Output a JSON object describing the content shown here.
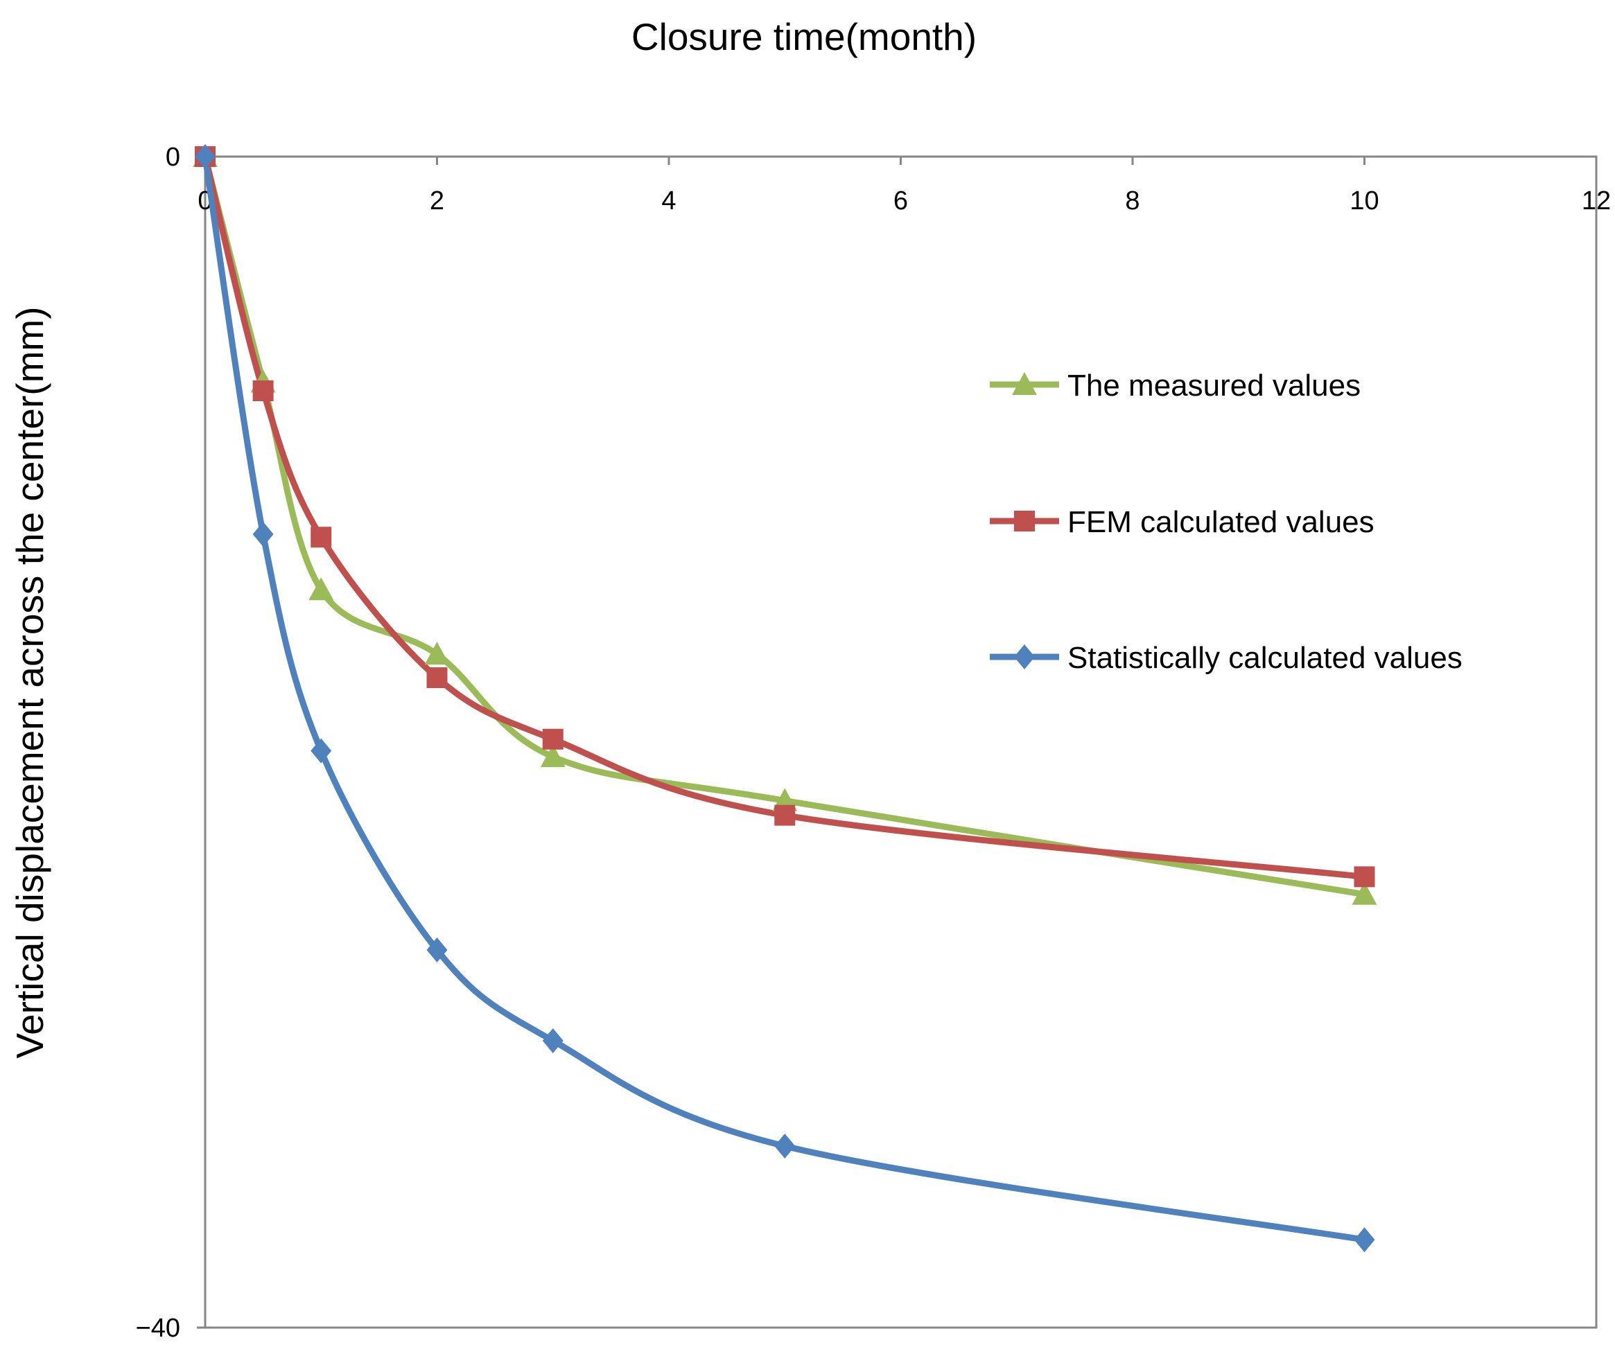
{
  "chart_data": {
    "type": "line",
    "title": "",
    "xlabel": "Closure time(month)",
    "ylabel": "Vertical displacement across the center(mm)",
    "xlim": [
      0,
      12
    ],
    "ylim": [
      -40,
      0
    ],
    "x_ticks": [
      "0",
      "2",
      "4",
      "6",
      "8",
      "10",
      "12"
    ],
    "y_ticks": [
      "0",
      "−40"
    ],
    "grid": false,
    "legend_position": "right",
    "series": [
      {
        "name": "The measured values",
        "color": "#9bbb59",
        "marker": "triangle",
        "x": [
          0,
          0.5,
          1,
          2,
          3,
          5,
          10
        ],
        "y": [
          0,
          -7.7,
          -14.8,
          -17.0,
          -20.5,
          -22.0,
          -25.2
        ]
      },
      {
        "name": "FEM calculated values",
        "color": "#c0504d",
        "marker": "square",
        "x": [
          0,
          0.5,
          1,
          2,
          3,
          5,
          10
        ],
        "y": [
          0,
          -8.0,
          -13.0,
          -17.8,
          -19.9,
          -22.5,
          -24.6
        ]
      },
      {
        "name": "Statistically calculated values",
        "color": "#4f81bd",
        "marker": "diamond",
        "x": [
          0,
          0.5,
          1,
          2,
          3,
          5,
          10
        ],
        "y": [
          0,
          -12.9,
          -20.3,
          -27.1,
          -30.2,
          -33.8,
          -37.0
        ]
      }
    ]
  }
}
